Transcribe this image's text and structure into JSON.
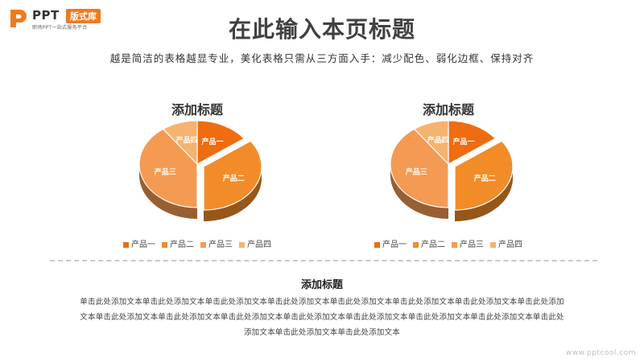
{
  "header": {
    "logo_text": "PPT",
    "logo_badge": "版式库",
    "logo_sub": "职场PPT一站式服务平台",
    "title": "在此输入本页标题",
    "subtitle": "越是简洁的表格越显专业，美化表格只需从三方面入手：减少配色、弱化边框、保持对齐"
  },
  "chart_data": [
    {
      "type": "pie",
      "title": "添加标题",
      "categories": [
        "产品一",
        "产品二",
        "产品三",
        "产品四"
      ],
      "values": [
        15,
        35,
        40,
        10
      ],
      "colors": [
        "#ef6c11",
        "#f28c28",
        "#f59a52",
        "#f6b36f"
      ],
      "exploded": "产品二",
      "legend": "bottom"
    },
    {
      "type": "pie",
      "title": "添加标题",
      "categories": [
        "产品一",
        "产品二",
        "产品三",
        "产品四"
      ],
      "values": [
        15,
        35,
        40,
        10
      ],
      "colors": [
        "#ef6c11",
        "#f28c28",
        "#f59a52",
        "#f6b36f"
      ],
      "exploded": "产品二",
      "legend": "bottom"
    }
  ],
  "section": {
    "title": "添加标题",
    "body": "单击此处添加文本单击此处添加文本单击此处添加文本单击此处添加文本单击此处添加文本单击此处添加文本单击此处添加文本单击此处添加文本单击此处添加文本单击此处添加文本单击此处添加文本单击此处添加文本单击此处添加文本单击此处添加文本单击此处添加文本单击此处添加文本单击此处添加文本单击此处添加文本"
  },
  "watermark": "www.pptcool.com",
  "colors": {
    "accent": "#f07a1c",
    "title_text": "#404040"
  }
}
